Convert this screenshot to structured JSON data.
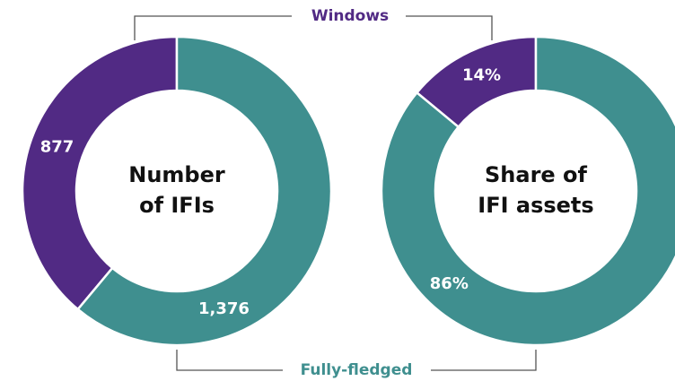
{
  "chart_data": [
    {
      "type": "pie",
      "title": [
        "Number",
        "of IFIs"
      ],
      "categories": [
        "Windows",
        "Fully-fledged"
      ],
      "values": [
        877,
        1376
      ],
      "value_labels": [
        "877",
        "1,376"
      ],
      "colors": [
        "#512a84",
        "#3f8f8f"
      ],
      "donut": true
    },
    {
      "type": "pie",
      "title": [
        "Share of",
        "IFI assets"
      ],
      "values": [
        14,
        86
      ],
      "value_labels": [
        "14%",
        "86%"
      ],
      "colors": [
        "#512a84",
        "#3f8f8f"
      ],
      "donut": true
    }
  ]
}
